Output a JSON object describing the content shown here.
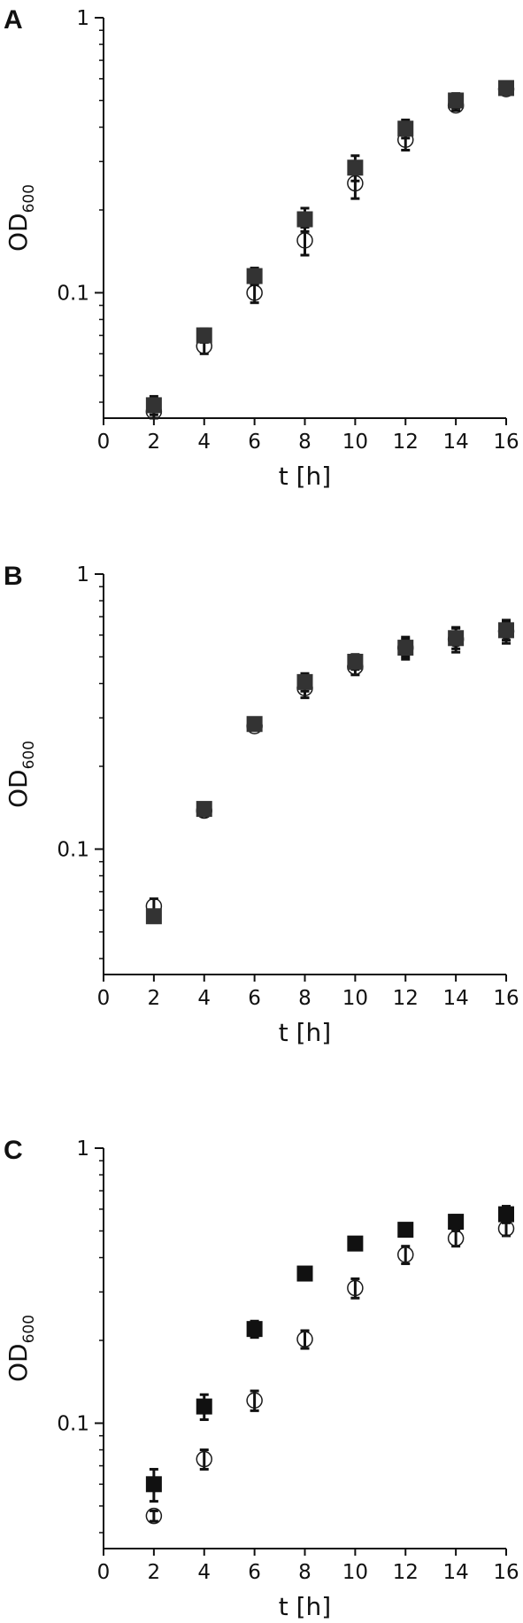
{
  "chart_data": [
    {
      "panel": "A",
      "type": "scatter",
      "xlabel": "t [h]",
      "ylabel": {
        "main": "OD",
        "sub": "600"
      },
      "xlim": [
        0,
        16
      ],
      "ylim": [
        0.035,
        1
      ],
      "yscale": "log",
      "x_ticks": [
        "0",
        "2",
        "4",
        "6",
        "8",
        "10",
        "12",
        "14",
        "16"
      ],
      "y_ticks": [
        "0.1",
        "1"
      ],
      "series": [
        {
          "marker": "open-circle",
          "color": "#1a1a1a",
          "x": [
            2,
            4,
            6,
            8,
            10,
            12,
            14,
            16
          ],
          "y": [
            0.037,
            0.064,
            0.1,
            0.155,
            0.25,
            0.36,
            0.48,
            0.55
          ],
          "err": [
            0.002,
            0.004,
            0.008,
            0.018,
            0.03,
            0.03,
            0.02,
            0.02
          ]
        },
        {
          "marker": "filled-square",
          "color": "#333333",
          "x": [
            2,
            4,
            6,
            8,
            10,
            12,
            14,
            16
          ],
          "y": [
            0.039,
            0.07,
            0.115,
            0.185,
            0.285,
            0.395,
            0.5,
            0.555
          ],
          "err": [
            0.003,
            0.004,
            0.008,
            0.018,
            0.03,
            0.03,
            0.03,
            0.02
          ]
        }
      ]
    },
    {
      "panel": "B",
      "type": "scatter",
      "xlabel": "t [h]",
      "ylabel": {
        "main": "OD",
        "sub": "600"
      },
      "xlim": [
        0,
        16
      ],
      "ylim": [
        0.035,
        1
      ],
      "yscale": "log",
      "x_ticks": [
        "0",
        "2",
        "4",
        "6",
        "8",
        "10",
        "12",
        "14",
        "16"
      ],
      "y_ticks": [
        "0.1",
        "1"
      ],
      "series": [
        {
          "marker": "open-circle",
          "color": "#1a1a1a",
          "x": [
            2,
            4,
            6,
            8,
            10,
            12,
            14,
            16
          ],
          "y": [
            0.062,
            0.138,
            0.28,
            0.385,
            0.46,
            0.54,
            0.58,
            0.62
          ],
          "err": [
            0.004,
            0.006,
            0.01,
            0.03,
            0.03,
            0.05,
            0.06,
            0.06
          ]
        },
        {
          "marker": "filled-square",
          "color": "#333333",
          "x": [
            2,
            4,
            6,
            8,
            10,
            12,
            14,
            16
          ],
          "y": [
            0.057,
            0.14,
            0.285,
            0.405,
            0.48,
            0.54,
            0.585,
            0.625
          ],
          "err": [
            0.003,
            0.006,
            0.01,
            0.03,
            0.03,
            0.04,
            0.05,
            0.05
          ]
        }
      ]
    },
    {
      "panel": "C",
      "type": "scatter",
      "xlabel": "t [h]",
      "ylabel": {
        "main": "OD",
        "sub": "600"
      },
      "xlim": [
        0,
        16
      ],
      "ylim": [
        0.035,
        1
      ],
      "yscale": "log",
      "x_ticks": [
        "0",
        "2",
        "4",
        "6",
        "8",
        "10",
        "12",
        "14",
        "16"
      ],
      "y_ticks": [
        "0.1",
        "1"
      ],
      "series": [
        {
          "marker": "open-circle",
          "color": "#1a1a1a",
          "x": [
            2,
            4,
            6,
            8,
            10,
            12,
            14,
            16
          ],
          "y": [
            0.046,
            0.074,
            0.121,
            0.202,
            0.31,
            0.41,
            0.47,
            0.51
          ],
          "err": [
            0.002,
            0.006,
            0.01,
            0.015,
            0.025,
            0.03,
            0.03,
            0.03
          ]
        },
        {
          "marker": "filled-square",
          "color": "#111111",
          "x": [
            2,
            4,
            6,
            8,
            10,
            12,
            14,
            16
          ],
          "y": [
            0.06,
            0.115,
            0.22,
            0.35,
            0.45,
            0.505,
            0.54,
            0.575
          ],
          "err": [
            0.008,
            0.012,
            0.015,
            0.015,
            0.015,
            0.015,
            0.03,
            0.04
          ]
        }
      ]
    }
  ]
}
